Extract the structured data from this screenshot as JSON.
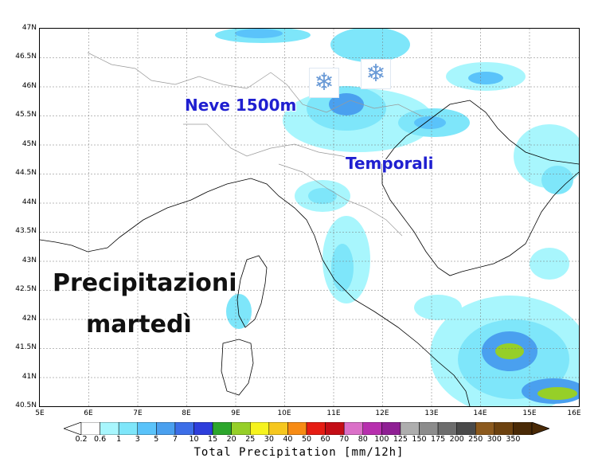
{
  "map": {
    "lat_ticks": [
      "47N",
      "46.5N",
      "46N",
      "45.5N",
      "45N",
      "44.5N",
      "44N",
      "43.5N",
      "43N",
      "42.5N",
      "42N",
      "41.5N",
      "41N",
      "40.5N"
    ],
    "lon_ticks": [
      "5E",
      "6E",
      "7E",
      "8E",
      "9E",
      "10E",
      "11E",
      "12E",
      "13E",
      "14E",
      "15E",
      "16E"
    ],
    "lat_range": [
      40.5,
      47
    ],
    "lon_range": [
      5,
      16
    ]
  },
  "annotations": {
    "snow": "Neve 1500m",
    "storms": "Temporali",
    "title_line1": "Precipitazioni",
    "title_line2": "martedì",
    "snow_icon_name": "snowflake-icon"
  },
  "legend": {
    "values": [
      "0.2",
      "0.6",
      "1",
      "3",
      "5",
      "7",
      "10",
      "15",
      "20",
      "25",
      "30",
      "40",
      "50",
      "60",
      "70",
      "80",
      "100",
      "125",
      "150",
      "175",
      "200",
      "250",
      "300",
      "350"
    ],
    "colors": [
      "#ffffff",
      "#a8f6fd",
      "#7ee6fa",
      "#5ac3fa",
      "#4aa0ef",
      "#3c6ee8",
      "#2d3edc",
      "#2ca62c",
      "#96cf28",
      "#f6f31e",
      "#f6c71e",
      "#f78b14",
      "#e61c13",
      "#c40d16",
      "#db70c8",
      "#b72fae",
      "#8f1f94",
      "#aeaeae",
      "#8c8c8c",
      "#6d6d6d",
      "#4a4a4a",
      "#8c5a1e",
      "#6d420f",
      "#4a2a06"
    ],
    "title": "Total Precipitation [mm/12h]"
  }
}
